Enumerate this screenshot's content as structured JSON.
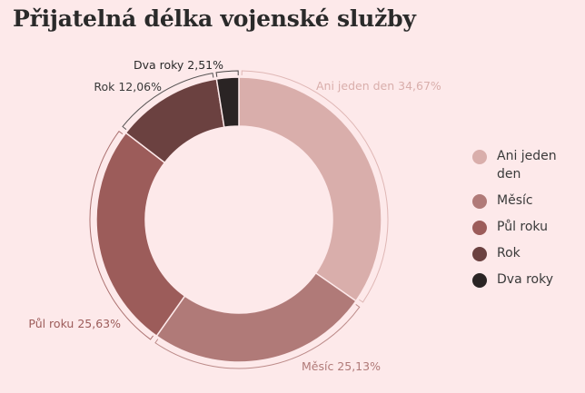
{
  "chart_data": {
    "type": "pie",
    "variant": "donut",
    "title": "Přijatelná délka vojenské služby",
    "categories": [
      "Ani jeden den",
      "Měsíc",
      "Půl roku",
      "Rok",
      "Dva roky"
    ],
    "values": [
      34.67,
      25.13,
      25.63,
      12.06,
      2.51
    ],
    "value_labels": [
      "34,67%",
      "25,13%",
      "25,63%",
      "12,06%",
      "2,51%"
    ],
    "colors": [
      "#d9aeab",
      "#b07a78",
      "#9c5c5a",
      "#6b4140",
      "#2a2424"
    ],
    "label_colors": [
      "#d9aeab",
      "#b07a78",
      "#9c5c5a",
      "#3a3a3a",
      "#2a2a2a"
    ],
    "legend_position": "right"
  }
}
